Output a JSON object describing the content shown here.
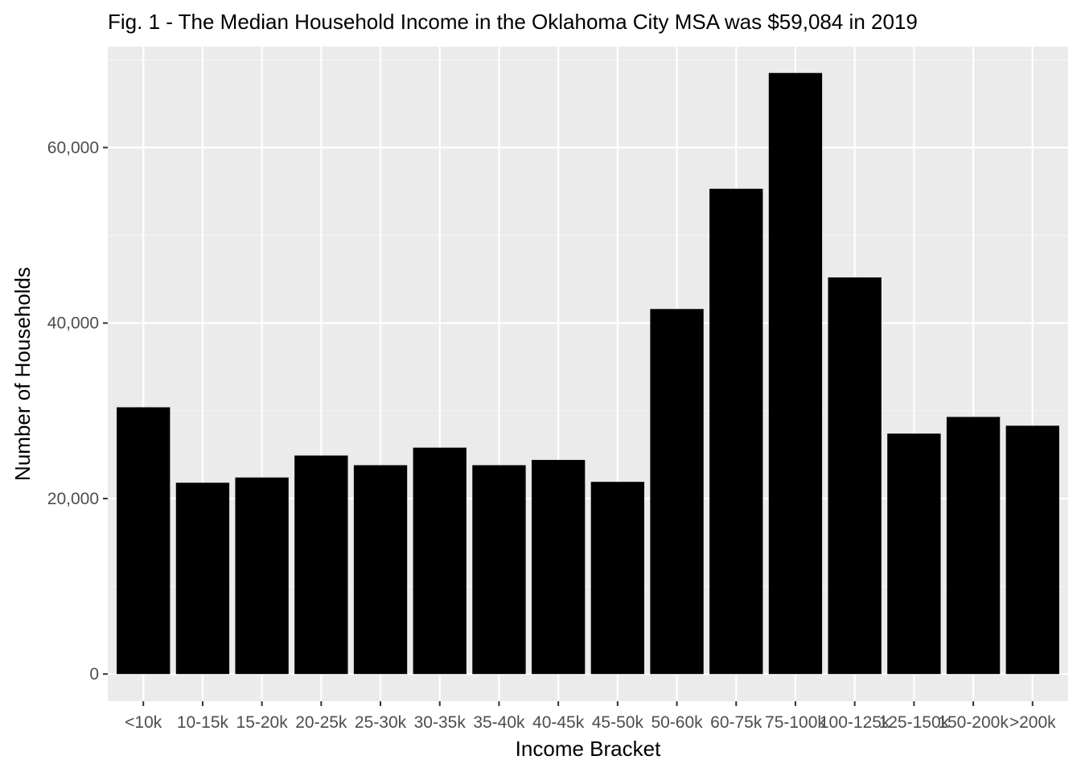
{
  "chart_data": {
    "type": "bar",
    "title": "Fig. 1 - The Median Household Income in the Oklahoma City MSA was $59,084 in 2019",
    "xlabel": "Income Bracket",
    "ylabel": "Number of Households",
    "categories": [
      "<10k",
      "10-15k",
      "15-20k",
      "20-25k",
      "25-30k",
      "30-35k",
      "35-40k",
      "40-45k",
      "45-50k",
      "50-60k",
      "60-75k",
      "75-100k",
      "100-125k",
      "125-150k",
      "150-200k",
      ">200k"
    ],
    "values": [
      30400,
      21800,
      22400,
      24900,
      23800,
      25800,
      23800,
      24400,
      21900,
      41600,
      55300,
      68500,
      45200,
      27400,
      29300,
      28300
    ],
    "ylim": [
      -3100,
      71500
    ],
    "yticks": [
      0,
      20000,
      40000,
      60000
    ],
    "ytick_labels": [
      "0",
      "20,000",
      "40,000",
      "60,000"
    ],
    "grid": true,
    "colors": {
      "bar": "#000000",
      "panel_background": "#ebebeb",
      "grid_major": "#ffffff",
      "grid_minor": "#f5f5f5",
      "tick_label": "#4d4d4d",
      "tick_mark": "#333333"
    }
  }
}
